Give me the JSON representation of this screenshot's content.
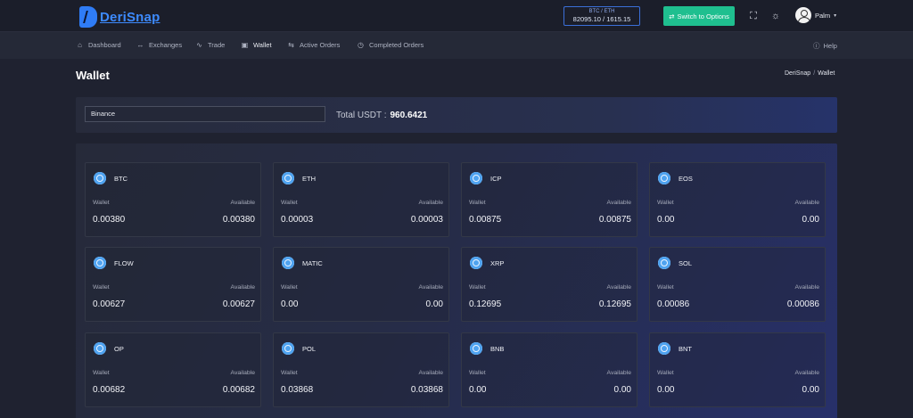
{
  "app": {
    "logo_text": "DeriSnap"
  },
  "ticker": {
    "pair": "BTC / ETH",
    "prices": "82095.10 / 1615.15"
  },
  "header": {
    "switch_label": "Switch to Options",
    "user_name": "Palm"
  },
  "nav": {
    "items": [
      {
        "label": "Dashboard",
        "icon": "home-icon"
      },
      {
        "label": "Exchanges",
        "icon": "arrows-icon"
      },
      {
        "label": "Trade",
        "icon": "wave-icon"
      },
      {
        "label": "Wallet",
        "icon": "wallet-icon"
      },
      {
        "label": "Active Orders",
        "icon": "swap-icon"
      },
      {
        "label": "Completed Orders",
        "icon": "clock-icon"
      }
    ],
    "help": "Help"
  },
  "page": {
    "title": "Wallet",
    "breadcrumb": [
      "DeriSnap",
      "Wallet"
    ]
  },
  "exchange": {
    "selected": "Binance",
    "total_label": "Total USDT :",
    "total_value": "960.6421"
  },
  "wallet_labels": {
    "wallet": "Wallet",
    "available": "Available"
  },
  "coins": [
    {
      "name": "BTC",
      "wallet": "0.00380",
      "available": "0.00380"
    },
    {
      "name": "ETH",
      "wallet": "0.00003",
      "available": "0.00003"
    },
    {
      "name": "ICP",
      "wallet": "0.00875",
      "available": "0.00875"
    },
    {
      "name": "EOS",
      "wallet": "0.00",
      "available": "0.00"
    },
    {
      "name": "FLOW",
      "wallet": "0.00627",
      "available": "0.00627"
    },
    {
      "name": "MATIC",
      "wallet": "0.00",
      "available": "0.00"
    },
    {
      "name": "XRP",
      "wallet": "0.12695",
      "available": "0.12695"
    },
    {
      "name": "SOL",
      "wallet": "0.00086",
      "available": "0.00086"
    },
    {
      "name": "OP",
      "wallet": "0.00682",
      "available": "0.00682"
    },
    {
      "name": "POL",
      "wallet": "0.03868",
      "available": "0.03868"
    },
    {
      "name": "BNB",
      "wallet": "0.00",
      "available": "0.00"
    },
    {
      "name": "BNT",
      "wallet": "0.00",
      "available": "0.00"
    }
  ]
}
